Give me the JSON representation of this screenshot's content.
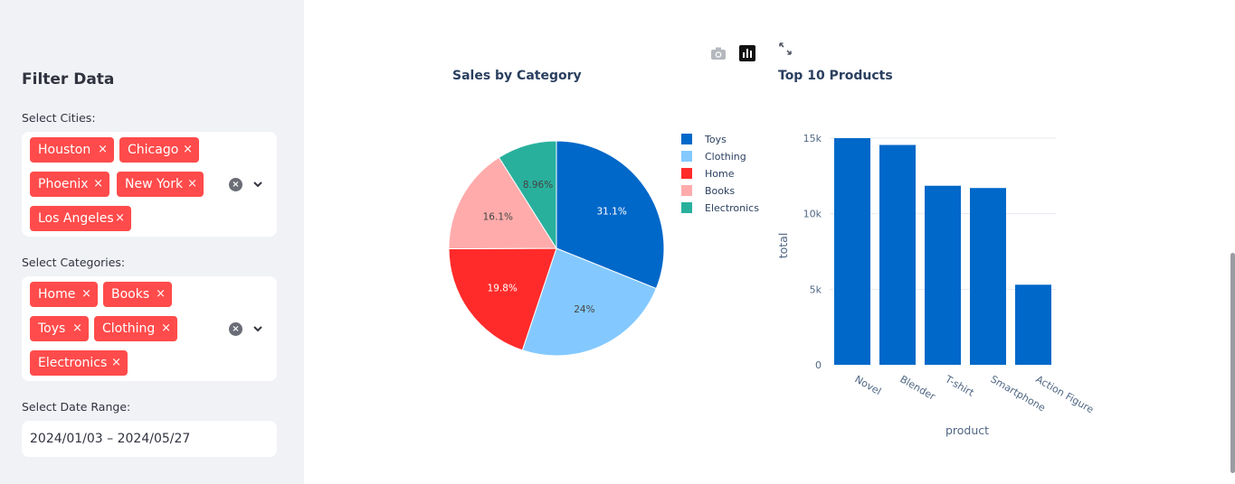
{
  "sidebar": {
    "title": "Filter Data",
    "cities": {
      "label": "Select Cities:",
      "tags": [
        "Houston",
        "Chicago",
        "Phoenix",
        "New York",
        "Los Angeles"
      ]
    },
    "categories": {
      "label": "Select Categories:",
      "tags": [
        "Home",
        "Books",
        "Toys",
        "Clothing",
        "Electronics"
      ]
    },
    "date": {
      "label": "Select Date Range:",
      "value": "2024/01/03 – 2024/05/27"
    },
    "remove_glyph": "×",
    "clear_glyph": "×"
  },
  "colors": {
    "accent": "#ff4b4b",
    "sidebar_bg": "#f0f2f6",
    "bar": "#0068c9"
  },
  "chart_data": [
    {
      "type": "pie",
      "title": "Sales by Category",
      "labels": [
        "Toys",
        "Clothing",
        "Home",
        "Books",
        "Electronics"
      ],
      "values": [
        31.1,
        24.0,
        19.8,
        16.1,
        8.96
      ],
      "text_labels": [
        "31.1%",
        "24%",
        "19.8%",
        "16.1%",
        "8.96%"
      ],
      "colors": [
        "#0068c9",
        "#83c9ff",
        "#ff2b2b",
        "#ffabab",
        "#29b09d"
      ],
      "legend": "right"
    },
    {
      "type": "bar",
      "title": "Top 10 Products",
      "categories": [
        "Novel",
        "Blender",
        "T-shirt",
        "Smartphone",
        "Action Figure"
      ],
      "values": [
        15000,
        14550,
        11850,
        11700,
        5300
      ],
      "xlabel": "product",
      "ylabel": "total",
      "ylim": [
        0,
        15000
      ],
      "yticks": [
        "0",
        "5k",
        "10k",
        "15k"
      ],
      "ytick_values": [
        0,
        5000,
        10000,
        15000
      ],
      "grid": true
    }
  ]
}
